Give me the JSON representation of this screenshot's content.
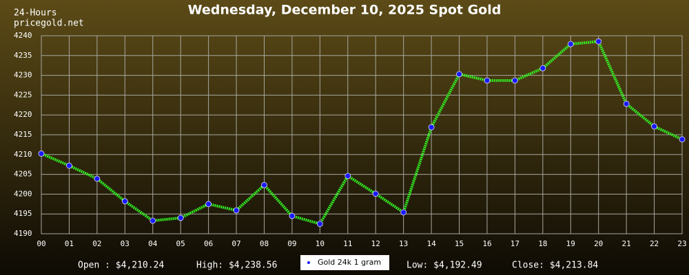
{
  "chart_data": {
    "type": "line",
    "title": "Wednesday, December 10, 2025 Spot Gold",
    "subtitle": "24-Hours",
    "source": "pricegold.net",
    "categories": [
      "00",
      "01",
      "02",
      "03",
      "04",
      "05",
      "06",
      "07",
      "08",
      "09",
      "10",
      "11",
      "12",
      "13",
      "14",
      "15",
      "16",
      "17",
      "18",
      "19",
      "20",
      "21",
      "22",
      "23"
    ],
    "series": [
      {
        "name": "Gold 24k 1 gram",
        "color": "#33ee22",
        "marker_color": "#1a1aff",
        "values": [
          4210.24,
          4207.2,
          4203.9,
          4198.2,
          4193.3,
          4194.0,
          4197.5,
          4195.9,
          4202.3,
          4194.5,
          4192.49,
          4204.6,
          4200.1,
          4195.4,
          4216.9,
          4230.3,
          4228.7,
          4228.7,
          4231.8,
          4237.9,
          4238.56,
          4222.8,
          4217.1,
          4213.84
        ]
      }
    ],
    "ylim": [
      4190,
      4240
    ],
    "yticks": [
      4190,
      4195,
      4200,
      4205,
      4210,
      4215,
      4220,
      4225,
      4230,
      4235,
      4240
    ],
    "grid": true,
    "stats": [
      "Open : $4,210.24",
      "High: $4,238.56",
      "Low: $4,192.49",
      "Close: $4,213.84"
    ]
  }
}
